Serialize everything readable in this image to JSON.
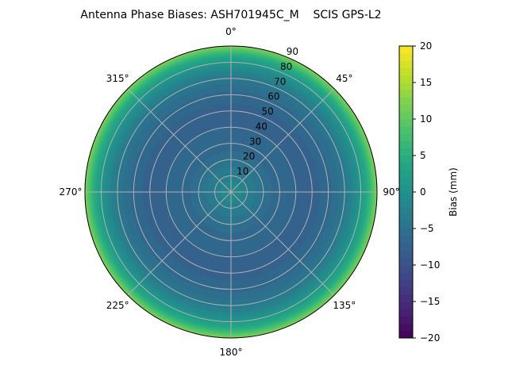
{
  "chart_data": {
    "type": "heatmap",
    "projection": "polar",
    "title": "Antenna Phase Biases: ASH701945C_M    SCIS GPS-L2",
    "theta_direction": "clockwise",
    "theta_zero": "north",
    "theta_tick_labels": [
      "0°",
      "45°",
      "90°",
      "135°",
      "180°",
      "225°",
      "270°",
      "315°"
    ],
    "theta_ticks": [
      0,
      45,
      90,
      135,
      180,
      225,
      270,
      315
    ],
    "r_ticks": [
      10,
      20,
      30,
      40,
      50,
      60,
      70,
      80,
      90
    ],
    "r_tick_labels": [
      "10",
      "20",
      "30",
      "40",
      "50",
      "60",
      "70",
      "80",
      "90"
    ],
    "r_range": [
      0,
      90
    ],
    "grid": true,
    "colormap": "viridis",
    "colorbar": {
      "label": "Bias (mm)",
      "range": [
        -20,
        20
      ],
      "ticks": [
        20,
        15,
        10,
        5,
        0,
        -5,
        -10,
        -15,
        -20
      ],
      "tick_labels": [
        "20",
        "15",
        "10",
        "5",
        "0",
        "−5",
        "−10",
        "−15",
        "−20"
      ]
    },
    "radial_profile": {
      "zenith_deg": [
        0,
        5,
        10,
        15,
        20,
        25,
        30,
        35,
        40,
        45,
        50,
        55,
        60,
        65,
        70,
        75,
        80,
        85,
        90
      ],
      "bias_mm": [
        -1,
        -1.5,
        -3,
        -4,
        -5,
        -6,
        -6.5,
        -7,
        -7,
        -7.5,
        -7.5,
        -7,
        -6.5,
        -5.5,
        -4,
        -2,
        1,
        5,
        12
      ]
    }
  }
}
